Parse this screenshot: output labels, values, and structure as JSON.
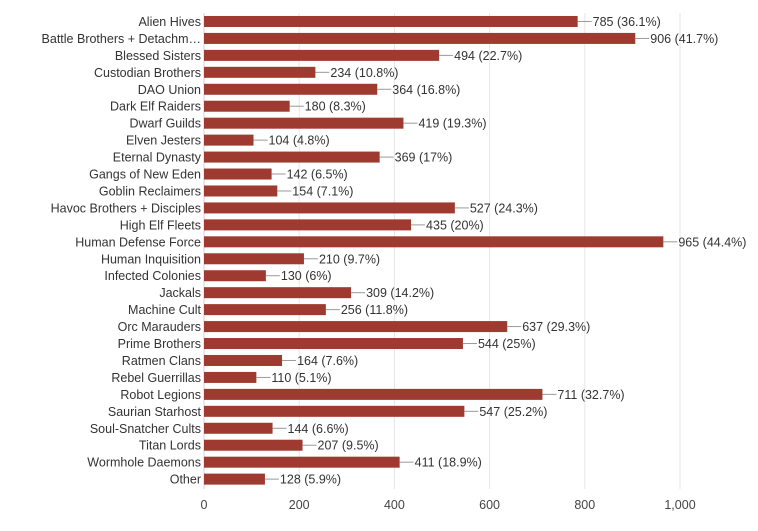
{
  "chart_data": {
    "type": "bar",
    "orientation": "horizontal",
    "title": "",
    "xlabel": "",
    "ylabel": "",
    "xlim": [
      0,
      1000
    ],
    "x_ticks": [
      0,
      200,
      400,
      600,
      800,
      1000
    ],
    "x_tick_labels": [
      "0",
      "200",
      "400",
      "600",
      "800",
      "1,000"
    ],
    "grid": true,
    "bar_color": "#9e3a2f",
    "categories": [
      "Alien Hives",
      "Battle Brothers + Detachm…",
      "Blessed Sisters",
      "Custodian Brothers",
      "DAO Union",
      "Dark Elf Raiders",
      "Dwarf Guilds",
      "Elven Jesters",
      "Eternal Dynasty",
      "Gangs of New Eden",
      "Goblin Reclaimers",
      "Havoc Brothers + Disciples",
      "High Elf Fleets",
      "Human Defense Force",
      "Human Inquisition",
      "Infected Colonies",
      "Jackals",
      "Machine Cult",
      "Orc Marauders",
      "Prime Brothers",
      "Ratmen Clans",
      "Rebel Guerrillas",
      "Robot Legions",
      "Saurian Starhost",
      "Soul-Snatcher Cults",
      "Titan Lords",
      "Wormhole Daemons",
      "Other"
    ],
    "values": [
      785,
      906,
      494,
      234,
      364,
      180,
      419,
      104,
      369,
      142,
      154,
      527,
      435,
      965,
      210,
      130,
      309,
      256,
      637,
      544,
      164,
      110,
      711,
      547,
      144,
      207,
      411,
      128
    ],
    "value_labels": [
      "785 (36.1%)",
      "906 (41.7%)",
      "494 (22.7%)",
      "234 (10.8%)",
      "364 (16.8%)",
      "180 (8.3%)",
      "419 (19.3%)",
      "104 (4.8%)",
      "369 (17%)",
      "142 (6.5%)",
      "154 (7.1%)",
      "527 (24.3%)",
      "435 (20%)",
      "965 (44.4%)",
      "210 (9.7%)",
      "130 (6%)",
      "309 (14.2%)",
      "256 (11.8%)",
      "637 (29.3%)",
      "544 (25%)",
      "164 (7.6%)",
      "110 (5.1%)",
      "711 (32.7%)",
      "547 (25.2%)",
      "144 (6.6%)",
      "207 (9.5%)",
      "411 (18.9%)",
      "128 (5.9%)"
    ]
  }
}
